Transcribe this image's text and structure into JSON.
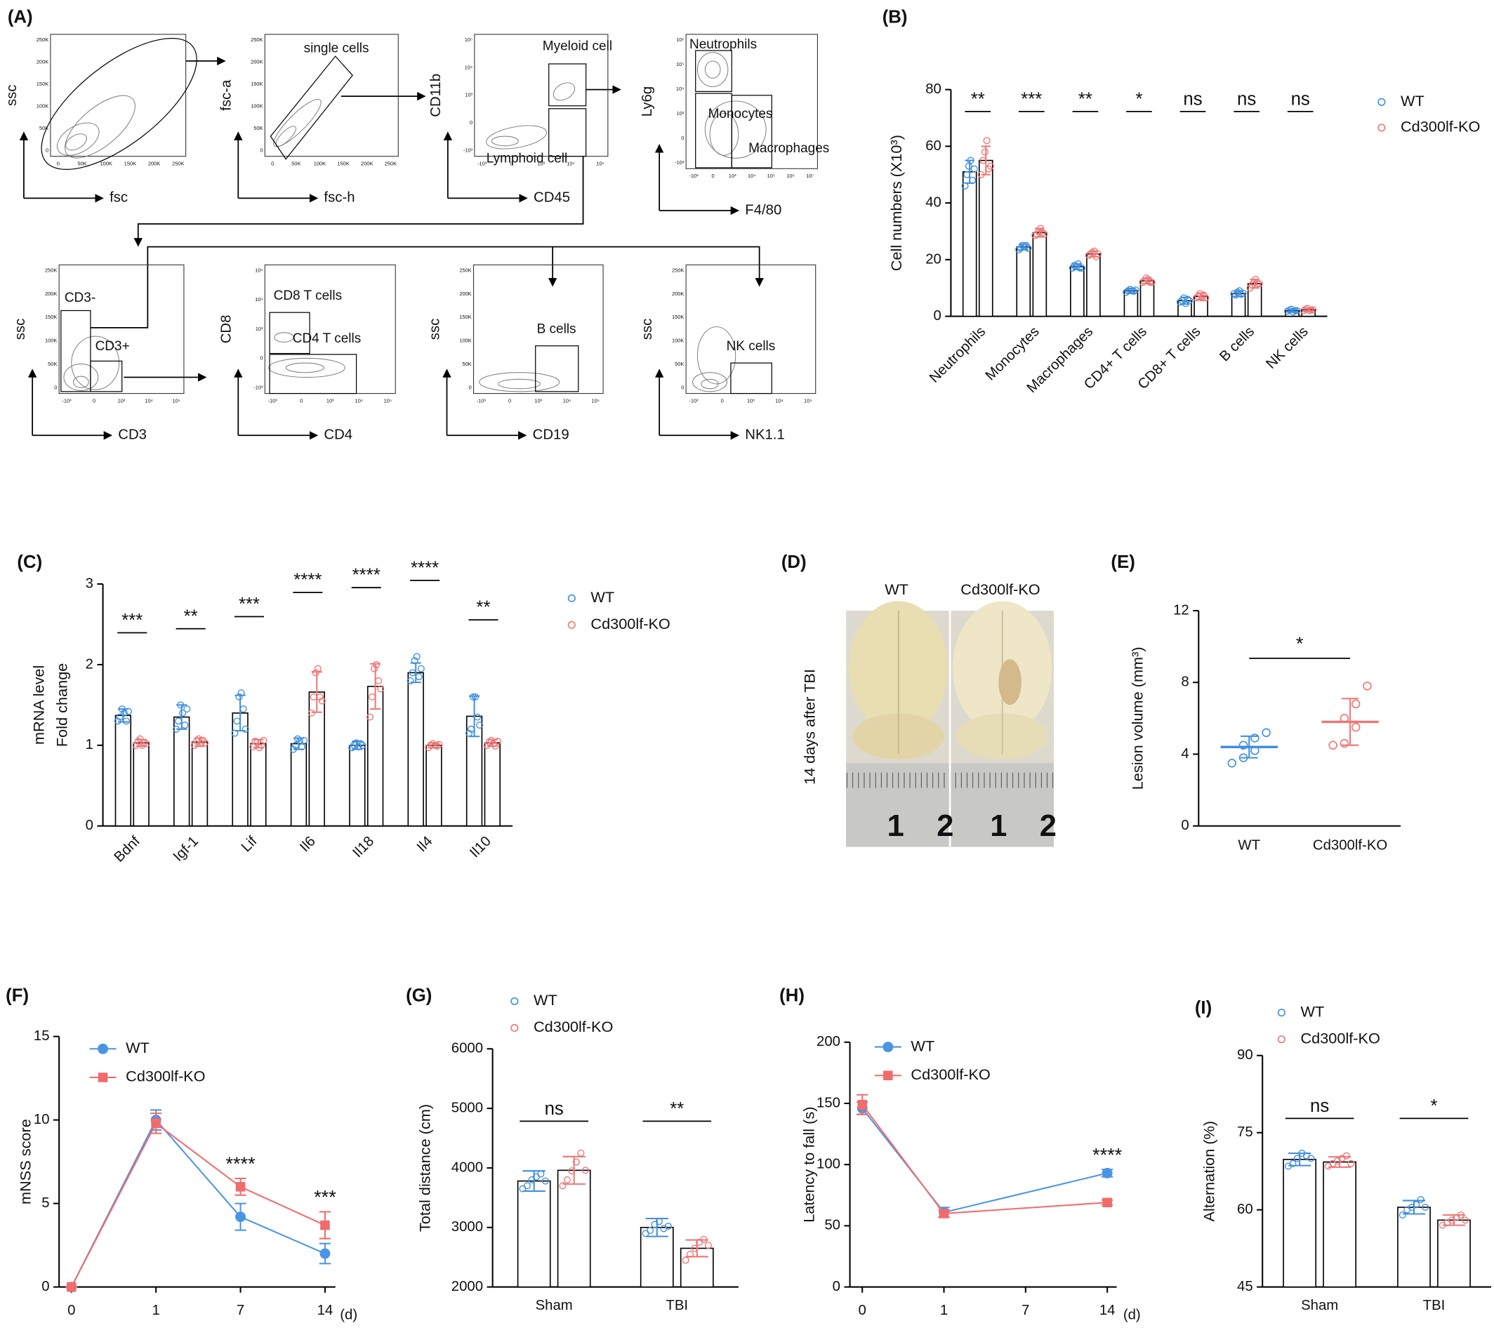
{
  "panel_labels": [
    "(A)",
    "(B)",
    "(C)",
    "(D)",
    "(E)",
    "(F)",
    "(G)",
    "(H)",
    "(I)"
  ],
  "flow_plots": [
    {
      "x_label": "fsc",
      "y_label": "ssc",
      "xticks": [
        "0",
        "50K",
        "100K",
        "150K",
        "200K",
        "250K"
      ],
      "yticks": [
        "0",
        "50K",
        "100K",
        "150K",
        "200K",
        "250K"
      ],
      "gates": []
    },
    {
      "x_label": "fsc-h",
      "y_label": "fsc-a",
      "xticks": [
        "0",
        "50K",
        "100K",
        "150K",
        "200K",
        "250K"
      ],
      "yticks": [
        "0",
        "50K",
        "100K",
        "150K",
        "200K",
        "250K"
      ],
      "gates": [
        "single cells"
      ]
    },
    {
      "x_label": "CD45",
      "y_label": "CD11b",
      "xticks": [
        "-10³",
        "0",
        "10³",
        "10⁴",
        "10⁵"
      ],
      "yticks": [
        "-10³",
        "0",
        "10³",
        "10⁴",
        "10⁵"
      ],
      "gates": [
        "Myeloid cell",
        "Lymphoid cell"
      ]
    },
    {
      "x_label": "F4/80",
      "y_label": "Ly6g",
      "xticks": [
        "-10³",
        "0",
        "10³",
        "10⁴",
        "10⁵",
        "10⁶",
        "10⁷"
      ],
      "yticks": [
        "-10³",
        "0",
        "10³",
        "10⁴",
        "10⁵",
        "10⁶"
      ],
      "gates": [
        "Neutrophils",
        "Monocytes",
        "Macrophages"
      ]
    },
    {
      "x_label": "CD3",
      "y_label": "ssc",
      "xticks": [
        "-10³",
        "0",
        "10³",
        "10⁴",
        "10⁵"
      ],
      "yticks": [
        "0",
        "50K",
        "100K",
        "150K",
        "200K",
        "250K"
      ],
      "gates": [
        "CD3-",
        "CD3+"
      ]
    },
    {
      "x_label": "CD4",
      "y_label": "CD8",
      "xticks": [
        "-10³",
        "0",
        "10³",
        "10⁴",
        "10⁵"
      ],
      "yticks": [
        "-10³",
        "0",
        "10³",
        "10⁴",
        "10⁵"
      ],
      "gates": [
        "CD8 T cells",
        "CD4 T cells"
      ]
    },
    {
      "x_label": "CD19",
      "y_label": "ssc",
      "xticks": [
        "-10³",
        "0",
        "10³",
        "10⁴",
        "10⁵"
      ],
      "yticks": [
        "0",
        "50K",
        "100K",
        "150K",
        "200K",
        "250K"
      ],
      "gates": [
        "B cells"
      ]
    },
    {
      "x_label": "NK1.1",
      "y_label": "ssc",
      "xticks": [
        "-10³",
        "0",
        "10³",
        "10⁴",
        "10⁵"
      ],
      "yticks": [
        "0",
        "50K",
        "100K",
        "150K",
        "200K",
        "250K"
      ],
      "gates": [
        "NK cells"
      ]
    }
  ],
  "photo": {
    "labels": [
      "WT",
      "Cd300lf-KO"
    ],
    "side_label": "14 days after TBI",
    "ruler_labels": [
      "1",
      "2",
      "1",
      "2"
    ]
  },
  "chart_data": [
    {
      "type": "bar",
      "ylabel": "Cell numbers (X10³)",
      "categories": [
        "Neutrophils",
        "Monocytes",
        "Macrophages",
        "CD4+ T cells",
        "CD8+ T cells",
        "B cells",
        "NK cells"
      ],
      "ylim": [
        0,
        80
      ],
      "yticks": [
        0,
        20,
        40,
        60,
        80
      ],
      "series": [
        {
          "name": "WT",
          "color": "#3f8fdf",
          "values": [
            51,
            24.5,
            17.5,
            9,
            5.5,
            8,
            2
          ],
          "errors": [
            4,
            1,
            1,
            0.8,
            1.2,
            1,
            0.5
          ],
          "points": [
            [
              46,
              50,
              53,
              55,
              48,
              52
            ],
            [
              23.5,
              24,
              25,
              24.5,
              25,
              24
            ],
            [
              17,
              18,
              17.5,
              18.5,
              17,
              17
            ],
            [
              8.5,
              9,
              9.5,
              9,
              8.8,
              9.3
            ],
            [
              5,
              5.5,
              6.5,
              4.5,
              6,
              5.5
            ],
            [
              8,
              7.5,
              8.5,
              9,
              7.8,
              8.2
            ],
            [
              1.8,
              2.2,
              2.5,
              1.5,
              2,
              2
            ]
          ]
        },
        {
          "name": "Cd300lf-KO",
          "color": "#f07575",
          "values": [
            55,
            29.5,
            22,
            12.5,
            7,
            11.5,
            2.3
          ],
          "errors": [
            5,
            1.5,
            1,
            1,
            1.2,
            1.5,
            0.5
          ],
          "points": [
            [
              50,
              55,
              58,
              62,
              52,
              53
            ],
            [
              28.5,
              29,
              30,
              31,
              29.5,
              29
            ],
            [
              21.5,
              22,
              22.5,
              23,
              21,
              22
            ],
            [
              12,
              12.5,
              13.5,
              13,
              12,
              12
            ],
            [
              6.5,
              7,
              8,
              6.5,
              7.5,
              6.5
            ],
            [
              10,
              11,
              12,
              13,
              11.5,
              11.5
            ],
            [
              2,
              2.5,
              2.8,
              2,
              2.2,
              2.3
            ]
          ]
        }
      ],
      "significance": [
        "**",
        "***",
        "**",
        "*",
        "ns",
        "ns",
        "ns"
      ]
    },
    {
      "type": "bar",
      "ylabel": [
        "mRNA level",
        "Fold change"
      ],
      "categories": [
        "Bdnf",
        "Igf-1",
        "Lif",
        "Il6",
        "Il18",
        "Il4",
        "Il10"
      ],
      "ylim": [
        0,
        3
      ],
      "yticks": [
        0,
        1,
        2,
        3
      ],
      "series": [
        {
          "name": "WT",
          "color": "#3f8fdf",
          "values": [
            1.37,
            1.35,
            1.4,
            1.02,
            1.0,
            1.9,
            1.36
          ],
          "errors": [
            0.08,
            0.15,
            0.22,
            0.07,
            0.05,
            0.12,
            0.25
          ],
          "points": [
            [
              1.3,
              1.35,
              1.45,
              1.4,
              1.3,
              1.42
            ],
            [
              1.2,
              1.3,
              1.5,
              1.4,
              1.25,
              1.45
            ],
            [
              1.15,
              1.3,
              1.6,
              1.65,
              1.45,
              1.2
            ],
            [
              0.95,
              1.0,
              1.08,
              1.05,
              0.98,
              1.06
            ],
            [
              0.97,
              1.0,
              1.03,
              0.98,
              1.02,
              1.0
            ],
            [
              1.8,
              1.9,
              2.05,
              2.1,
              1.85,
              1.95
            ],
            [
              1.15,
              1.2,
              1.6,
              1.6,
              1.35,
              1.25
            ]
          ]
        },
        {
          "name": "Cd300lf-KO",
          "color": "#f07575",
          "values": [
            1.03,
            1.04,
            1.02,
            1.66,
            1.73,
            1.0,
            1.03
          ],
          "errors": [
            0.04,
            0.05,
            0.05,
            0.25,
            0.28,
            0.03,
            0.04
          ],
          "points": [
            [
              1.0,
              1.05,
              1.08,
              1.0,
              1.03,
              1.02
            ],
            [
              1.0,
              1.05,
              1.08,
              1.02,
              1.06,
              1.03
            ],
            [
              0.98,
              1.05,
              1.04,
              0.97,
              1.0,
              1.06
            ],
            [
              1.4,
              1.6,
              1.9,
              1.95,
              1.6,
              1.55
            ],
            [
              1.35,
              1.6,
              1.95,
              2.0,
              1.8,
              1.7
            ],
            [
              0.97,
              1.0,
              1.02,
              1.0,
              0.99,
              1.01
            ],
            [
              1.0,
              1.04,
              1.06,
              1.02,
              0.99,
              1.05
            ]
          ]
        }
      ],
      "significance": [
        "***",
        "**",
        "***",
        "****",
        "****",
        "****",
        "**"
      ]
    },
    {
      "type": "dot",
      "ylabel": "Lesion volume (mm³)",
      "categories": [
        "WT",
        "Cd300lf-KO"
      ],
      "colors": [
        "#3f8fdf",
        "#f07575"
      ],
      "values": [
        4.4,
        5.8
      ],
      "errors": [
        0.6,
        1.3
      ],
      "points": [
        [
          3.5,
          3.8,
          4.2,
          4.5,
          4.9,
          5.2
        ],
        [
          4.5,
          4.6,
          5.5,
          6,
          6.8,
          7.8
        ]
      ],
      "ylim": [
        0,
        12
      ],
      "yticks": [
        0,
        4,
        8,
        12
      ],
      "significance": "*"
    },
    {
      "type": "line",
      "ylabel": "mNSS score",
      "xlabel": "(d)",
      "categories": [
        "0",
        "1",
        "7",
        "14"
      ],
      "ylim": [
        0,
        15
      ],
      "yticks": [
        0,
        5,
        10,
        15
      ],
      "series": [
        {
          "name": "WT",
          "color": "#4a94e6",
          "marker": "circle",
          "values": [
            0,
            10,
            4.2,
            2.0
          ],
          "errors": [
            0,
            0.6,
            0.8,
            0.6
          ]
        },
        {
          "name": "Cd300lf-KO",
          "color": "#f06c6c",
          "marker": "square",
          "values": [
            0,
            9.8,
            6,
            3.7
          ],
          "errors": [
            0,
            0.6,
            0.5,
            0.8
          ]
        }
      ],
      "annotations": [
        {
          "text": "****",
          "x": "7"
        },
        {
          "text": "***",
          "x": "14"
        }
      ]
    },
    {
      "type": "bar",
      "ylabel": "Total distance (cm)",
      "categories": [
        "Sham",
        "TBI"
      ],
      "ylim": [
        2000,
        6000
      ],
      "yticks": [
        2000,
        3000,
        4000,
        5000,
        6000
      ],
      "series": [
        {
          "name": "WT",
          "color": "#3f8fdf",
          "values": [
            3780,
            3000
          ],
          "errors": [
            170,
            150
          ],
          "points": [
            [
              3650,
              3700,
              3800,
              3850,
              3900,
              3780
            ],
            [
              2900,
              2950,
              3050,
              3100,
              2980,
              3020
            ]
          ]
        },
        {
          "name": "Cd300lf-KO",
          "color": "#f07575",
          "values": [
            3960,
            2650
          ],
          "errors": [
            230,
            140
          ],
          "points": [
            [
              3700,
              3800,
              3950,
              4100,
              4250,
              3960
            ],
            [
              2450,
              2550,
              2650,
              2750,
              2800,
              2700
            ]
          ]
        }
      ],
      "significance": [
        "ns",
        "**"
      ]
    },
    {
      "type": "line",
      "ylabel": "Latency to fall (s)",
      "xlabel": "(d)",
      "categories": [
        "0",
        "1",
        "7",
        "14"
      ],
      "ylim": [
        0,
        200
      ],
      "yticks": [
        0,
        50,
        100,
        150,
        200
      ],
      "series": [
        {
          "name": "WT",
          "color": "#4a94e6",
          "marker": "circle",
          "x": [
            "0",
            "1",
            "14"
          ],
          "values": [
            146,
            61,
            93
          ],
          "errors": [
            5,
            4,
            3
          ]
        },
        {
          "name": "Cd300lf-KO",
          "color": "#f06c6c",
          "marker": "square",
          "x": [
            "0",
            "1",
            "14"
          ],
          "values": [
            149,
            60,
            69
          ],
          "errors": [
            8,
            3,
            2
          ]
        }
      ],
      "annotations": [
        {
          "text": "****",
          "x": "14"
        }
      ]
    },
    {
      "type": "bar",
      "ylabel": "Alternation (%)",
      "categories": [
        "Sham",
        "TBI"
      ],
      "ylim": [
        45,
        90
      ],
      "yticks": [
        45,
        60,
        75,
        90
      ],
      "series": [
        {
          "name": "WT",
          "color": "#3f8fdf",
          "values": [
            69.8,
            60.5
          ],
          "errors": [
            1.2,
            1.3
          ],
          "points": [
            [
              68.5,
              69,
              70,
              71,
              70.5,
              70
            ],
            [
              59,
              60,
              60.5,
              61,
              62,
              60.5
            ]
          ]
        },
        {
          "name": "Cd300lf-KO",
          "color": "#f07575",
          "values": [
            69.3,
            58
          ],
          "errors": [
            1,
            1
          ],
          "points": [
            [
              68.5,
              69,
              69.5,
              70,
              70.5,
              69
            ],
            [
              57,
              57.5,
              58,
              58.5,
              59,
              58
            ]
          ]
        }
      ],
      "significance": [
        "ns",
        "*"
      ]
    }
  ]
}
